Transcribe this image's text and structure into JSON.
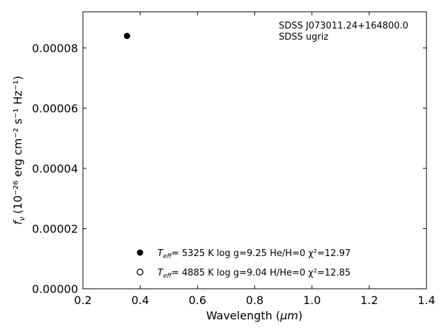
{
  "chart_data": {
    "type": "scatter",
    "xlabel_text": "Wavelength (",
    "xlabel_unit": "μm",
    "xlabel_close": ")",
    "ylabel_prefix": "f",
    "ylabel_sub": "ν",
    "ylabel_units": "(10⁻²⁶ erg cm⁻² s⁻¹ Hz⁻¹)",
    "xlim": [
      0.2,
      1.4
    ],
    "ylim": [
      0.0,
      9.2e-05
    ],
    "xticks": [
      0.2,
      0.4,
      0.6,
      0.8,
      1.0,
      1.2,
      1.4
    ],
    "xtick_labels": [
      "0.2",
      "0.4",
      "0.6",
      "0.8",
      "1.0",
      "1.2",
      "1.4"
    ],
    "yticks": [
      0.0,
      2e-05,
      4e-05,
      6e-05,
      8e-05
    ],
    "ytick_labels": [
      "0.00000",
      "0.00002",
      "0.00004",
      "0.00006",
      "0.00008"
    ],
    "annotations": [
      "SDSS J073011.24+164800.0",
      "SDSS ugriz"
    ],
    "grid": false,
    "legend_placement": "bottom-center",
    "series": [
      {
        "marker": "filled-circle",
        "x": [
          0.354
        ],
        "y": [
          8.4e-05
        ],
        "legend": {
          "teff_label": "T",
          "teff_sub": "eff",
          "text": "=  5325 K  log g=9.25  He/H=0  χ²=12.97"
        }
      },
      {
        "marker": "open-circle",
        "x": [],
        "y": [],
        "legend": {
          "teff_label": "T",
          "teff_sub": "eff",
          "text": "=  4885 K  log g=9.04  H/He=0  χ²=12.85"
        }
      }
    ],
    "colors": {
      "marker": "#000000",
      "axis": "#000000"
    }
  }
}
